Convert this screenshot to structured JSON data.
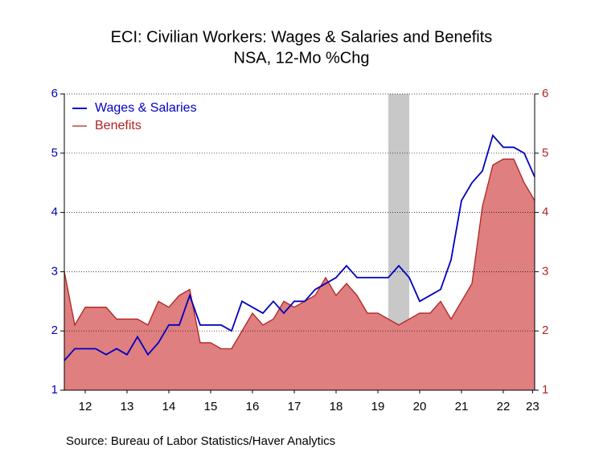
{
  "chart_data": {
    "type": "line_area",
    "title": "ECI: Civilian Workers: Wages & Salaries and Benefits",
    "subtitle": "NSA, 12-Mo %Chg",
    "source": "Source:  Bureau of Labor Statistics/Haver Analytics",
    "x": [
      2012,
      2012.25,
      2012.5,
      2012.75,
      2013,
      2013.25,
      2013.5,
      2013.75,
      2014,
      2014.25,
      2014.5,
      2014.75,
      2015,
      2015.25,
      2015.5,
      2015.75,
      2016,
      2016.25,
      2016.5,
      2016.75,
      2017,
      2017.25,
      2017.5,
      2017.75,
      2018,
      2018.25,
      2018.5,
      2018.75,
      2019,
      2019.25,
      2019.5,
      2019.75,
      2020,
      2020.25,
      2020.5,
      2020.75,
      2021,
      2021.25,
      2021.5,
      2021.75,
      2022,
      2022.25,
      2022.5,
      2022.75,
      2023,
      2023.25
    ],
    "series": [
      {
        "name": "Wages & Salaries",
        "color": "#0000c0",
        "style": "line",
        "values": [
          1.5,
          1.7,
          1.7,
          1.7,
          1.6,
          1.7,
          1.6,
          1.9,
          1.6,
          1.8,
          2.1,
          2.1,
          2.6,
          2.1,
          2.1,
          2.1,
          2.0,
          2.5,
          2.4,
          2.3,
          2.5,
          2.3,
          2.5,
          2.5,
          2.7,
          2.8,
          2.9,
          3.1,
          2.9,
          2.9,
          2.9,
          2.9,
          3.1,
          2.9,
          2.5,
          2.6,
          2.7,
          3.2,
          4.2,
          4.5,
          4.7,
          5.3,
          5.1,
          5.1,
          5.0,
          4.6
        ]
      },
      {
        "name": "Benefits",
        "color": "#b22222",
        "fill": "#df7f7f",
        "style": "area",
        "axis": "y2",
        "values": [
          3.0,
          2.1,
          2.4,
          2.4,
          2.4,
          2.2,
          2.2,
          2.2,
          2.1,
          2.5,
          2.4,
          2.6,
          2.7,
          1.8,
          1.8,
          1.7,
          1.7,
          2.0,
          2.3,
          2.1,
          2.2,
          2.5,
          2.4,
          2.5,
          2.6,
          2.9,
          2.6,
          2.8,
          2.6,
          2.3,
          2.3,
          2.2,
          2.1,
          2.2,
          2.3,
          2.3,
          2.5,
          2.2,
          2.5,
          2.8,
          4.1,
          4.8,
          4.9,
          4.9,
          4.5,
          4.2
        ]
      }
    ],
    "xlim": [
      2012,
      2023.25
    ],
    "xticks": [
      {
        "value": 2012.5,
        "label": "12"
      },
      {
        "value": 2013.5,
        "label": "13"
      },
      {
        "value": 2014.5,
        "label": "14"
      },
      {
        "value": 2015.5,
        "label": "15"
      },
      {
        "value": 2016.5,
        "label": "16"
      },
      {
        "value": 2017.5,
        "label": "17"
      },
      {
        "value": 2018.5,
        "label": "18"
      },
      {
        "value": 2019.5,
        "label": "19"
      },
      {
        "value": 2020.5,
        "label": "20"
      },
      {
        "value": 2021.5,
        "label": "21"
      },
      {
        "value": 2022.5,
        "label": "22"
      },
      {
        "value": 2023.2,
        "label": "23"
      }
    ],
    "ylim": [
      1,
      6
    ],
    "yticks": [
      1,
      2,
      3,
      4,
      5,
      6
    ],
    "y2lim": [
      1,
      6
    ],
    "y2ticks": [
      1,
      2,
      3,
      4,
      5,
      6
    ],
    "recession": [
      2019.75,
      2020.25
    ],
    "grid": true,
    "legend": "top-left"
  }
}
